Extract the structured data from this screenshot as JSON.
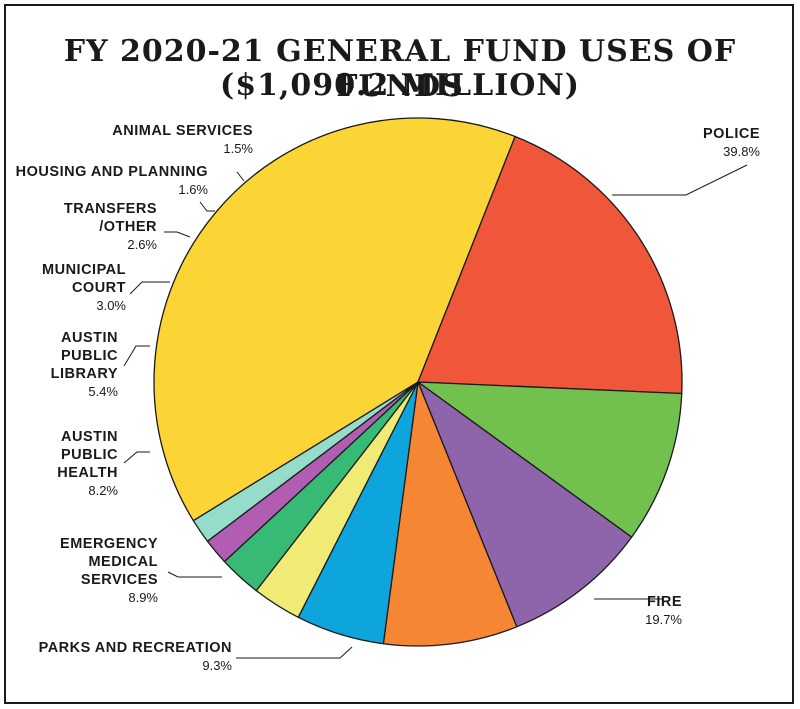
{
  "title_line1": "FY 2020-21 GENERAL FUND USES OF FUNDS",
  "title_line2": "($1,090.2 MILLION)",
  "chart_data": {
    "type": "pie",
    "title": "FY 2020-21 GENERAL FUND USES OF FUNDS",
    "subtitle": "($1,090.2 MILLION)",
    "slices": [
      {
        "key": "police",
        "label": [
          "POLICE"
        ],
        "percent_label": "39.8%",
        "value": 39.8,
        "color": "#FBD535"
      },
      {
        "key": "fire",
        "label": [
          "FIRE"
        ],
        "percent_label": "19.7%",
        "value": 19.7,
        "color": "#F0573A"
      },
      {
        "key": "parks",
        "label": [
          "PARKS AND RECREATION"
        ],
        "percent_label": "9.3%",
        "value": 9.3,
        "color": "#72C14F"
      },
      {
        "key": "ems",
        "label": [
          "EMERGENCY",
          "MEDICAL",
          "SERVICES"
        ],
        "percent_label": "8.9%",
        "value": 8.9,
        "color": "#8E64AA"
      },
      {
        "key": "health",
        "label": [
          "AUSTIN",
          "PUBLIC",
          "HEALTH"
        ],
        "percent_label": "8.2%",
        "value": 8.2,
        "color": "#F58634"
      },
      {
        "key": "library",
        "label": [
          "AUSTIN",
          "PUBLIC",
          "LIBRARY"
        ],
        "percent_label": "5.4%",
        "value": 5.4,
        "color": "#0EA5DD"
      },
      {
        "key": "court",
        "label": [
          "MUNICIPAL",
          "COURT"
        ],
        "percent_label": "3.0%",
        "value": 3.0,
        "color": "#F0EB74"
      },
      {
        "key": "transfers",
        "label": [
          "TRANSFERS",
          "/OTHER"
        ],
        "percent_label": "2.6%",
        "value": 2.6,
        "color": "#36BA76"
      },
      {
        "key": "housing",
        "label": [
          "HOUSING AND PLANNING"
        ],
        "percent_label": "1.6%",
        "value": 1.6,
        "color": "#B05DB2"
      },
      {
        "key": "animal",
        "label": [
          "ANIMAL SERVICES"
        ],
        "percent_label": "1.5%",
        "value": 1.5,
        "color": "#96DCCB"
      }
    ]
  }
}
